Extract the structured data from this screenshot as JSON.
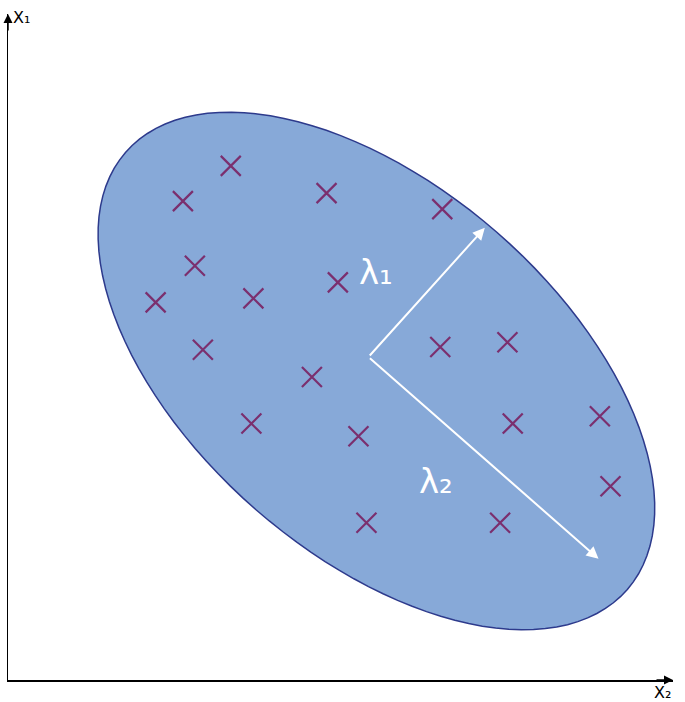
{
  "chart_data": {
    "type": "scatter",
    "x_label": "X₂",
    "y_label": "X₁",
    "x": [
      33.5,
      26.3,
      47.9,
      65.3,
      28.1,
      49.6,
      22.2,
      36.9,
      29.3,
      45.7,
      65.0,
      75.1,
      36.6,
      52.7,
      75.9,
      89.0,
      90.6,
      53.9,
      74.0
    ],
    "y": [
      77.2,
      71.9,
      73.1,
      70.7,
      62.2,
      59.7,
      56.7,
      57.3,
      49.6,
      45.5,
      50.0,
      50.7,
      38.5,
      36.6,
      38.5,
      39.6,
      29.1,
      23.6,
      23.6
    ],
    "color": "#7b2f6e",
    "marker": "x",
    "xlim": [
      0,
      100
    ],
    "ylim": [
      0,
      100
    ],
    "tick_labels": false,
    "grid": false,
    "ellipse": {
      "center": [
        55.4,
        46.4
      ],
      "semi_axes": [
        50,
        27.6
      ],
      "angle": -41,
      "color": "#87a9d8",
      "edge_color": "#2d3a8c"
    },
    "vectors": [
      {
        "label": "λ₁",
        "from": [
          54.2,
          48.5
        ],
        "to": [
          71.7,
          67.9
        ],
        "label_at": [
          55.4,
          61.2
        ],
        "color": "#ffffff"
      },
      {
        "label": "λ₂",
        "from": [
          54.2,
          48.5
        ],
        "to": [
          88.8,
          18.2
        ],
        "label_at": [
          64.3,
          29.9
        ],
        "color": "#ffffff"
      }
    ]
  }
}
